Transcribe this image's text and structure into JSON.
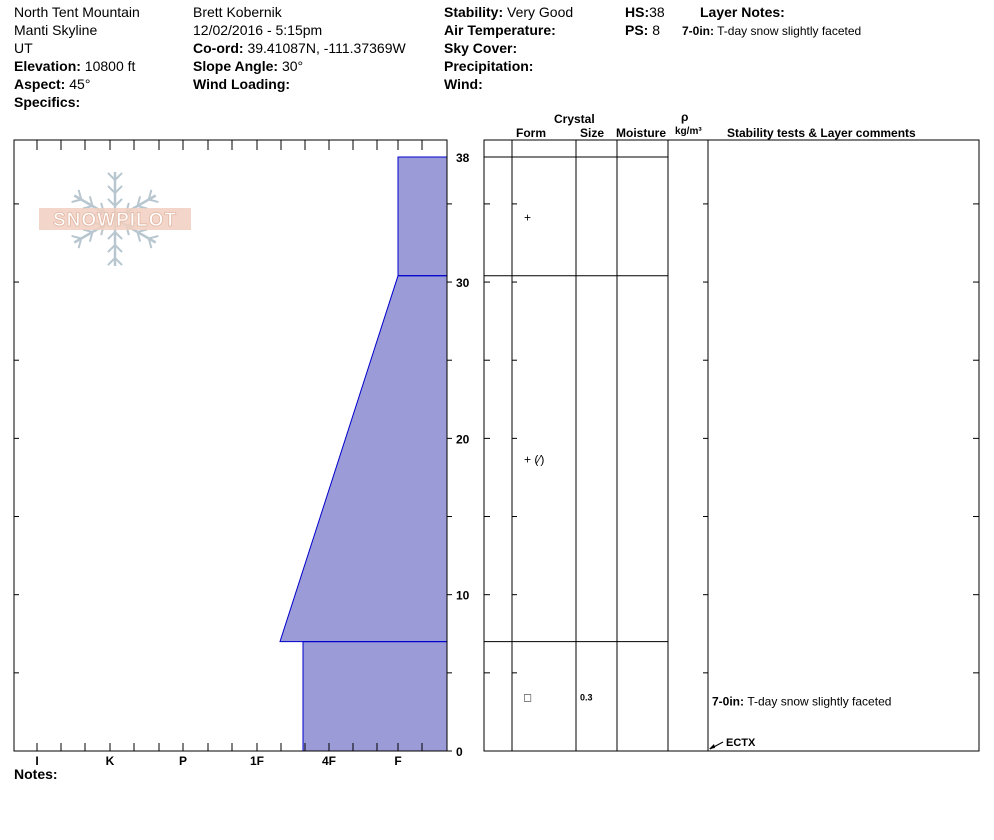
{
  "header": {
    "location": "North Tent Mountain",
    "range": "Manti Skyline",
    "state": "UT",
    "elevation_label": "Elevation:",
    "elevation": "10800 ft",
    "aspect_label": "Aspect:",
    "aspect": "45°",
    "specifics_label": "Specifics:",
    "observer": "Brett Kobernik",
    "datetime": "12/02/2016 - 5:15pm",
    "coord_label": "Co-ord:",
    "coord": "39.41087N, -111.37369W",
    "slope_label": "Slope Angle:",
    "slope": "30°",
    "wind_loading_label": "Wind Loading:",
    "stability_label": "Stability:",
    "stability": "Very Good",
    "air_temp_label": "Air Temperature:",
    "sky_cover_label": "Sky Cover:",
    "precip_label": "Precipitation:",
    "wind_label": "Wind:",
    "hs_label": "HS:",
    "hs": "38",
    "ps_label": "PS:",
    "ps": "8",
    "layer_notes_label": "Layer Notes:",
    "layer_note_range": "7-0in:",
    "layer_note_text": "T-day snow slightly faceted"
  },
  "logo_text": "SNOWPILOT",
  "notes_label": "Notes:",
  "columns": {
    "crystal": "Crystal",
    "form": "Form",
    "size": "Size",
    "moisture": "Moisture",
    "rho": "ρ",
    "density_unit": "kg/m³",
    "stability": "Stability tests & Layer comments"
  },
  "chart_data": {
    "type": "snow-profile",
    "y_unit": "in",
    "ylim": [
      0,
      38
    ],
    "y_ticks": [
      0,
      10,
      20,
      30,
      38
    ],
    "hardness_scale": [
      "I",
      "K",
      "P",
      "1F",
      "4F",
      "F"
    ],
    "layers": [
      {
        "top": 38,
        "bottom": 30.4,
        "hardness_top": "F",
        "hardness_bottom": "F",
        "form": "+",
        "size": "",
        "moisture": "",
        "comment_range": "",
        "comment": ""
      },
      {
        "top": 30.4,
        "bottom": 7,
        "hardness_top": "F",
        "hardness_bottom": "1F+",
        "form": "+ (⁄)",
        "size": "",
        "moisture": "",
        "comment_range": "",
        "comment": ""
      },
      {
        "top": 7,
        "bottom": 0,
        "hardness_top": "4F-",
        "hardness_bottom": "4F-",
        "form": "□",
        "size": "0.3",
        "moisture": "",
        "comment_range": "7-0in:",
        "comment": "T-day snow slightly faceted"
      }
    ],
    "stability_tests": [
      {
        "depth": 0,
        "label": "ECTX"
      }
    ],
    "colors": {
      "fill": "#9b9bd8",
      "layer_line": "#0000cc"
    }
  }
}
